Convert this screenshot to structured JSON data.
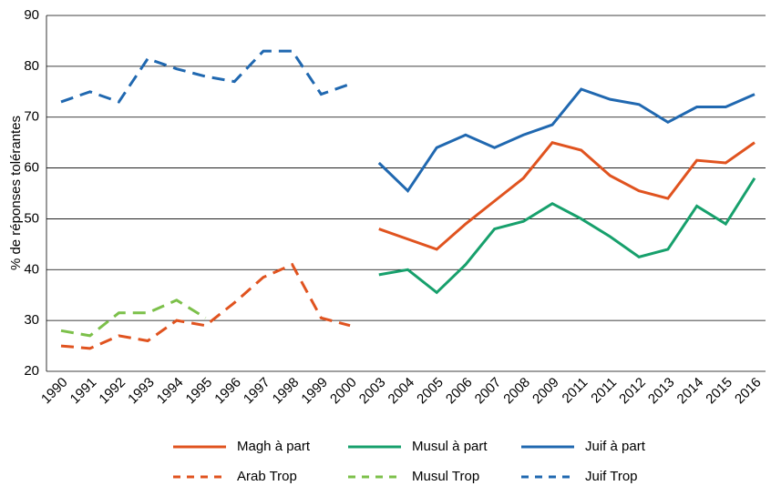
{
  "chart_data": {
    "type": "line",
    "y_label": "% de réponses tolérantes",
    "categories": [
      "1990",
      "1991",
      "1992",
      "1993",
      "1994",
      "1995",
      "1996",
      "1997",
      "1998",
      "1999",
      "2000",
      "2003",
      "2004",
      "2005",
      "2006",
      "2007",
      "2008",
      "2009",
      "2011",
      "2011",
      "2012",
      "2013",
      "2014",
      "2015",
      "2016"
    ],
    "ylim": [
      20,
      90
    ],
    "yticks": [
      20,
      30,
      40,
      50,
      60,
      70,
      80,
      90
    ],
    "grid": true,
    "legend": "bottom",
    "series": [
      {
        "name": "Magh à part",
        "color": "#e0531f",
        "linestyle": "solid",
        "values": [
          null,
          null,
          null,
          null,
          null,
          null,
          null,
          null,
          null,
          null,
          null,
          48,
          46,
          44,
          49,
          53.5,
          58,
          65,
          63.5,
          58.5,
          55.5,
          54,
          61.5,
          61,
          65
        ]
      },
      {
        "name": "Musul à part",
        "color": "#17a06c",
        "linestyle": "solid",
        "values": [
          null,
          null,
          null,
          null,
          null,
          null,
          null,
          null,
          null,
          null,
          null,
          39,
          40,
          35.5,
          41,
          48,
          49.5,
          53,
          50,
          46.5,
          42.5,
          44,
          52.5,
          49,
          58
        ]
      },
      {
        "name": "Juif à part",
        "color": "#2068b0",
        "linestyle": "solid",
        "values": [
          null,
          null,
          null,
          null,
          null,
          null,
          null,
          null,
          null,
          null,
          null,
          61,
          55.5,
          64,
          66.5,
          64,
          66.5,
          68.5,
          75.5,
          73.5,
          72.5,
          69,
          72,
          72,
          74.5
        ]
      },
      {
        "name": "Arab Trop",
        "color": "#e0531f",
        "linestyle": "dashed",
        "values": [
          25,
          24.5,
          27,
          26,
          30,
          29,
          33.5,
          38.5,
          41,
          30.5,
          29,
          null,
          null,
          null,
          null,
          null,
          null,
          null,
          null,
          null,
          null,
          null,
          null,
          null,
          null
        ]
      },
      {
        "name": "Musul Trop",
        "color": "#7cc04a",
        "linestyle": "dashed",
        "values": [
          28,
          27,
          31.5,
          31.5,
          34,
          30.5,
          null,
          null,
          null,
          null,
          null,
          null,
          null,
          null,
          null,
          null,
          null,
          null,
          null,
          null,
          null,
          null,
          null,
          null,
          null
        ]
      },
      {
        "name": "Juif Trop",
        "color": "#2068b0",
        "linestyle": "dashed",
        "values": [
          73,
          75,
          73,
          81.5,
          79.5,
          78,
          77,
          83,
          83,
          74.5,
          76.5,
          null,
          null,
          null,
          null,
          null,
          null,
          null,
          null,
          null,
          null,
          null,
          null,
          null,
          null
        ]
      }
    ]
  }
}
